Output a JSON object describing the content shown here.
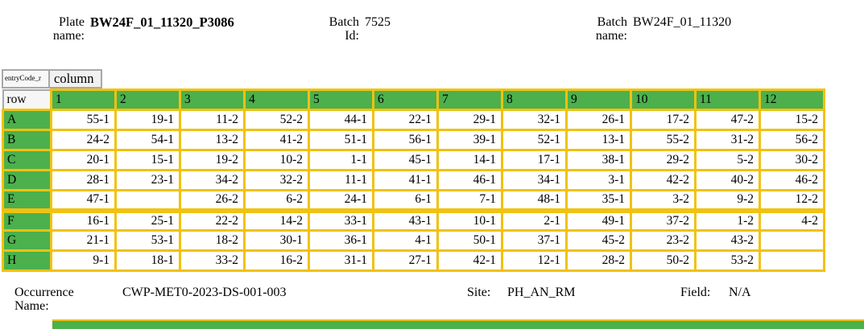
{
  "header": {
    "plate_name": {
      "label": "Plate name:",
      "value": "BW24F_01_11320_P3086"
    },
    "batch_id": {
      "label": "Batch Id:",
      "value": "7525"
    },
    "batch_name": {
      "label": "Batch name:",
      "value": "BW24F_01_11320"
    }
  },
  "plate": {
    "corner_field_label": "entryCode_r",
    "column_field_label": "column",
    "row_header_label": "row",
    "column_headers": [
      "1",
      "2",
      "3",
      "4",
      "5",
      "6",
      "7",
      "8",
      "9",
      "10",
      "11",
      "12"
    ],
    "thick_border_above_row": "F",
    "rows": [
      {
        "label": "A",
        "cells": [
          "55-1",
          "19-1",
          "11-2",
          "52-2",
          "44-1",
          "22-1",
          "29-1",
          "32-1",
          "26-1",
          "17-2",
          "47-2",
          "15-2"
        ]
      },
      {
        "label": "B",
        "cells": [
          "24-2",
          "54-1",
          "13-2",
          "41-2",
          "51-1",
          "56-1",
          "39-1",
          "52-1",
          "13-1",
          "55-2",
          "31-2",
          "56-2"
        ]
      },
      {
        "label": "C",
        "cells": [
          "20-1",
          "15-1",
          "19-2",
          "10-2",
          "1-1",
          "45-1",
          "14-1",
          "17-1",
          "38-1",
          "29-2",
          "5-2",
          "30-2"
        ]
      },
      {
        "label": "D",
        "cells": [
          "28-1",
          "23-1",
          "34-2",
          "32-2",
          "11-1",
          "41-1",
          "46-1",
          "34-1",
          "3-1",
          "42-2",
          "40-2",
          "46-2"
        ]
      },
      {
        "label": "E",
        "cells": [
          "47-1",
          "",
          "26-2",
          "6-2",
          "24-1",
          "6-1",
          "7-1",
          "48-1",
          "35-1",
          "3-2",
          "9-2",
          "12-2"
        ]
      },
      {
        "label": "F",
        "cells": [
          "16-1",
          "25-1",
          "22-2",
          "14-2",
          "33-1",
          "43-1",
          "10-1",
          "2-1",
          "49-1",
          "37-2",
          "1-2",
          "4-2"
        ]
      },
      {
        "label": "G",
        "cells": [
          "21-1",
          "53-1",
          "18-2",
          "30-1",
          "36-1",
          "4-1",
          "50-1",
          "37-1",
          "45-2",
          "23-2",
          "43-2",
          ""
        ]
      },
      {
        "label": "H",
        "cells": [
          "9-1",
          "18-1",
          "33-2",
          "16-2",
          "31-1",
          "27-1",
          "42-1",
          "12-1",
          "28-2",
          "50-2",
          "53-2",
          ""
        ]
      }
    ]
  },
  "footer": {
    "occurrence": {
      "label": "Occurrence Name:",
      "value": "CWP-MET0-2023-DS-001-003"
    },
    "site": {
      "label": "Site:",
      "value": "PH_AN_RM"
    },
    "field": {
      "label": "Field:",
      "value": "N/A"
    }
  },
  "colors": {
    "green": "#4cb04c",
    "yellow": "#f0c211",
    "grid_grey": "#a8a8a8"
  }
}
